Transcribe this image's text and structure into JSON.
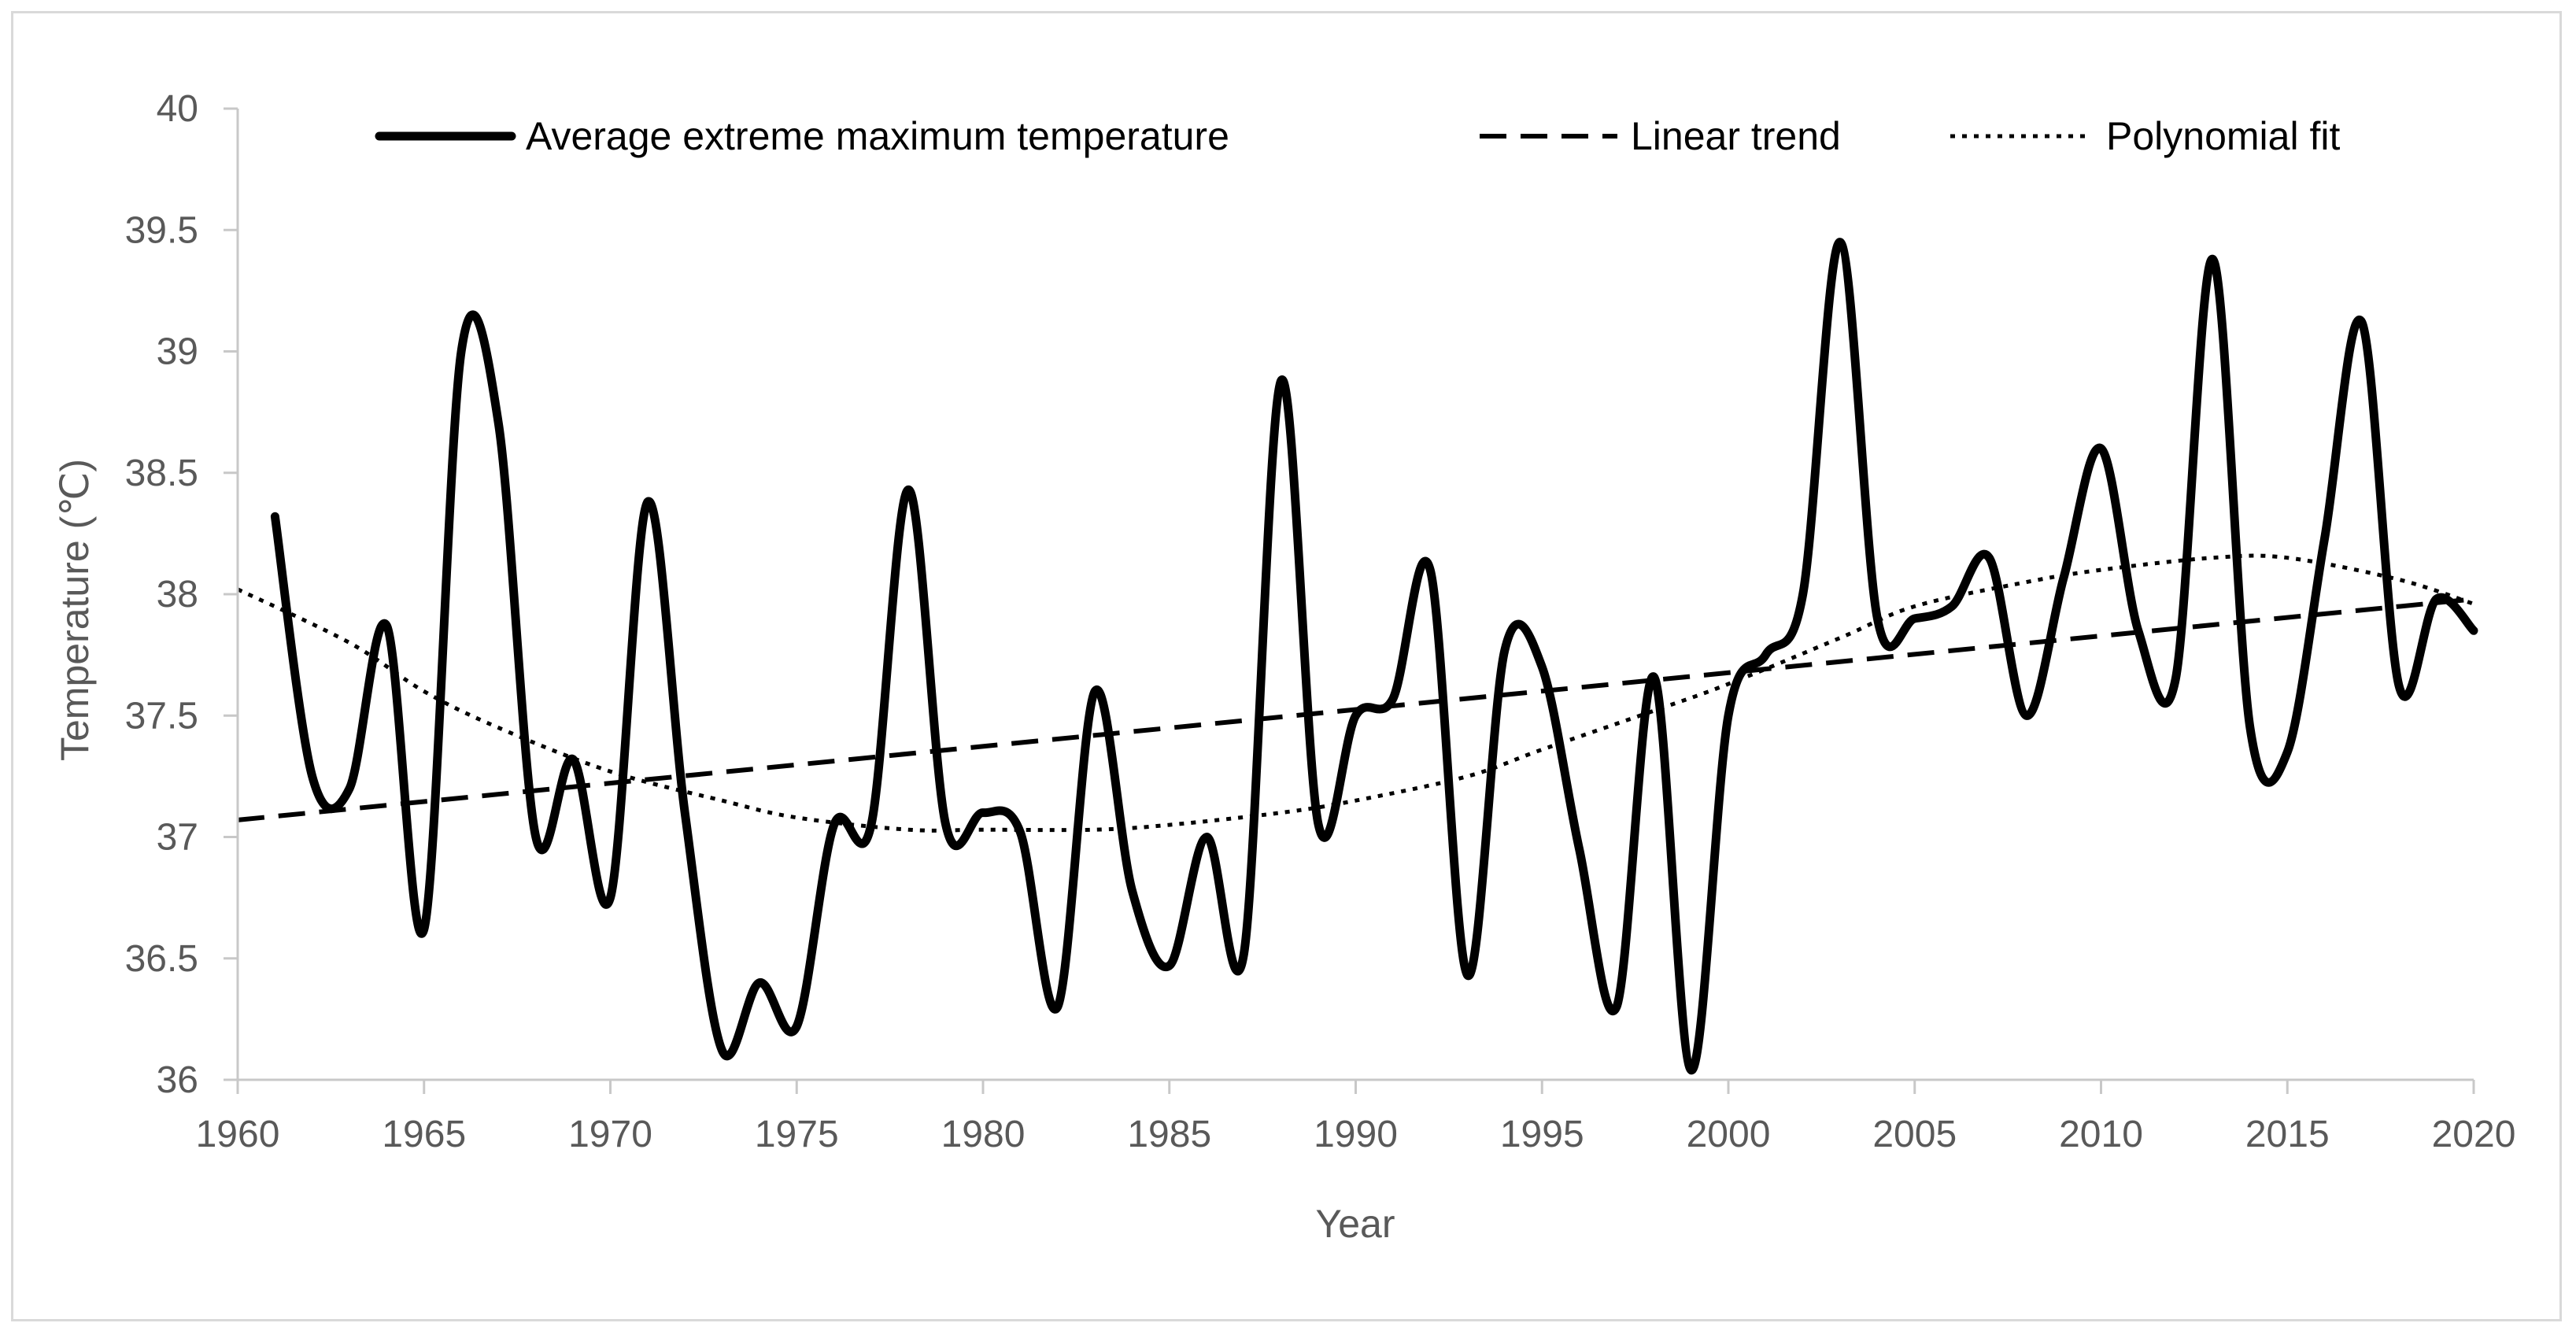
{
  "chart_data": {
    "type": "line",
    "title": "",
    "xlabel": "Year",
    "ylabel": "Temperature (℃)",
    "xlim": [
      1960,
      2020
    ],
    "ylim": [
      36,
      40
    ],
    "x_ticks": [
      "1960",
      "1965",
      "1970",
      "1975",
      "1980",
      "1985",
      "1990",
      "1995",
      "2000",
      "2005",
      "2010",
      "2015",
      "2020"
    ],
    "y_ticks": [
      "36",
      "36.5",
      "37",
      "37.5",
      "38",
      "38.5",
      "39",
      "39.5",
      "40"
    ],
    "grid": false,
    "legend_position": "top",
    "series": [
      {
        "name": "Average extreme maximum temperature",
        "style": "solid",
        "color": "#000000",
        "x": [
          1961,
          1962,
          1963,
          1964,
          1965,
          1966,
          1967,
          1968,
          1969,
          1970,
          1971,
          1972,
          1973,
          1974,
          1975,
          1976,
          1977,
          1978,
          1979,
          1980,
          1981,
          1982,
          1983,
          1984,
          1985,
          1986,
          1987,
          1988,
          1989,
          1990,
          1991,
          1992,
          1993,
          1994,
          1995,
          1996,
          1997,
          1998,
          1999,
          2000,
          2001,
          2002,
          2003,
          2004,
          2005,
          2006,
          2007,
          2008,
          2009,
          2010,
          2011,
          2012,
          2013,
          2014,
          2015,
          2016,
          2017,
          2018,
          2019,
          2020
        ],
        "values": [
          38.32,
          37.25,
          37.2,
          37.87,
          36.62,
          39.0,
          38.7,
          37.0,
          37.32,
          36.75,
          38.38,
          37.1,
          36.12,
          36.4,
          36.22,
          37.05,
          37.05,
          38.43,
          37.05,
          37.1,
          37.02,
          36.3,
          37.6,
          36.78,
          36.47,
          37.0,
          36.52,
          38.88,
          37.05,
          37.5,
          37.57,
          38.1,
          36.43,
          37.77,
          37.7,
          36.95,
          36.3,
          37.66,
          36.04,
          37.5,
          37.75,
          38.0,
          39.45,
          37.9,
          37.9,
          37.95,
          38.15,
          37.5,
          38.07,
          38.6,
          37.85,
          37.65,
          39.38,
          37.45,
          37.35,
          38.23,
          39.12,
          37.62,
          37.98,
          37.85
        ]
      },
      {
        "name": "Linear trend",
        "style": "dashed",
        "color": "#000000",
        "x": [
          1960,
          2020
        ],
        "values": [
          37.07,
          37.98
        ]
      },
      {
        "name": "Polynomial fit",
        "style": "dotted",
        "color": "#000000",
        "x": [
          1960,
          1963,
          1965,
          1967,
          1970,
          1973,
          1975,
          1978,
          1980,
          1983,
          1985,
          1988,
          1990,
          1993,
          1995,
          1998,
          2000,
          2003,
          2005,
          2008,
          2010,
          2013,
          2015,
          2018,
          2020
        ],
        "values": [
          38.02,
          37.8,
          37.6,
          37.45,
          37.27,
          37.15,
          37.08,
          37.03,
          37.03,
          37.03,
          37.05,
          37.1,
          37.15,
          37.25,
          37.36,
          37.52,
          37.63,
          37.82,
          37.95,
          38.05,
          38.1,
          38.15,
          38.15,
          38.06,
          37.96
        ]
      }
    ]
  }
}
